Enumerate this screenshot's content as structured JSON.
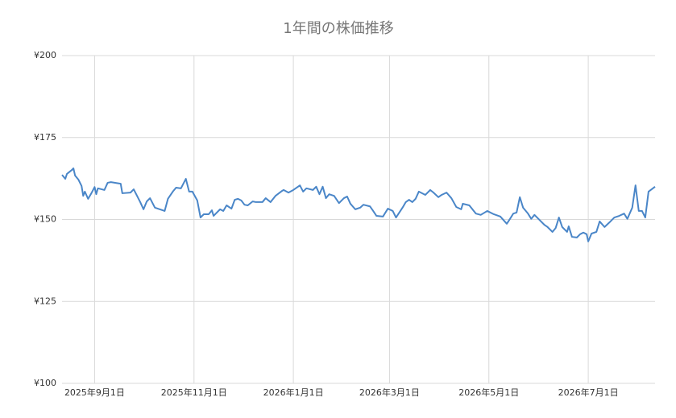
{
  "chart_data": {
    "type": "line",
    "title": "1年間の株価推移",
    "x": [
      "2025-08-12",
      "2025-08-14",
      "2025-08-15",
      "2025-08-18",
      "2025-08-19",
      "2025-08-20",
      "2025-08-22",
      "2025-08-24",
      "2025-08-25",
      "2025-08-26",
      "2025-08-28",
      "2025-08-30",
      "2025-09-01",
      "2025-09-02",
      "2025-09-03",
      "2025-09-07",
      "2025-09-09",
      "2025-09-11",
      "2025-09-17",
      "2025-09-18",
      "2025-09-23",
      "2025-09-25",
      "2025-09-29",
      "2025-10-01",
      "2025-10-03",
      "2025-10-05",
      "2025-10-08",
      "2025-10-14",
      "2025-10-16",
      "2025-10-19",
      "2025-10-21",
      "2025-10-24",
      "2025-10-27",
      "2025-10-29",
      "2025-10-31",
      "2025-11-03",
      "2025-11-05",
      "2025-11-07",
      "2025-11-10",
      "2025-11-12",
      "2025-11-13",
      "2025-11-17",
      "2025-11-19",
      "2025-11-21",
      "2025-11-24",
      "2025-11-26",
      "2025-11-28",
      "2025-11-30",
      "2025-12-02",
      "2025-12-04",
      "2025-12-07",
      "2025-12-09",
      "2025-12-13",
      "2025-12-15",
      "2025-12-18",
      "2025-12-21",
      "2025-12-25",
      "2025-12-26",
      "2025-12-29",
      "2026-01-01",
      "2026-01-05",
      "2026-01-07",
      "2026-01-09",
      "2026-01-13",
      "2026-01-15",
      "2026-01-17",
      "2026-01-19",
      "2026-01-21",
      "2026-01-23",
      "2026-01-26",
      "2026-01-29",
      "2026-02-01",
      "2026-02-03",
      "2026-02-05",
      "2026-02-08",
      "2026-02-11",
      "2026-02-13",
      "2026-02-17",
      "2026-02-19",
      "2026-02-21",
      "2026-02-25",
      "2026-02-28",
      "2026-03-03",
      "2026-03-05",
      "2026-03-09",
      "2026-03-11",
      "2026-03-13",
      "2026-03-15",
      "2026-03-17",
      "2026-03-19",
      "2026-03-23",
      "2026-03-26",
      "2026-03-28",
      "2026-03-31",
      "2026-04-02",
      "2026-04-05",
      "2026-04-08",
      "2026-04-11",
      "2026-04-14",
      "2026-04-15",
      "2026-04-19",
      "2026-04-23",
      "2026-04-26",
      "2026-04-30",
      "2026-05-04",
      "2026-05-08",
      "2026-05-12",
      "2026-05-14",
      "2026-05-16",
      "2026-05-18",
      "2026-05-20",
      "2026-05-22",
      "2026-05-25",
      "2026-05-27",
      "2026-05-29",
      "2026-06-01",
      "2026-06-04",
      "2026-06-06",
      "2026-06-09",
      "2026-06-11",
      "2026-06-13",
      "2026-06-15",
      "2026-06-18",
      "2026-06-19",
      "2026-06-21",
      "2026-06-24",
      "2026-06-26",
      "2026-06-28",
      "2026-06-30",
      "2026-07-01",
      "2026-07-03",
      "2026-07-06",
      "2026-07-08",
      "2026-07-11",
      "2026-07-14",
      "2026-07-17",
      "2026-07-20",
      "2026-07-23",
      "2026-07-25",
      "2026-07-28",
      "2026-07-30",
      "2026-08-01",
      "2026-08-03",
      "2026-08-05",
      "2026-08-07",
      "2026-08-11"
    ],
    "series": [
      {
        "color": "#4a86c8",
        "values": [
          163.6,
          162.4,
          163.9,
          165.1,
          165.6,
          163.4,
          162.2,
          160.2,
          157.2,
          158.5,
          156.3,
          158.0,
          159.9,
          157.7,
          159.5,
          159.0,
          161.2,
          161.4,
          160.9,
          158.0,
          158.2,
          159.2,
          155.3,
          153.1,
          155.5,
          156.5,
          153.6,
          152.6,
          156.3,
          158.5,
          159.7,
          159.5,
          162.4,
          158.5,
          158.5,
          155.8,
          150.6,
          151.6,
          151.6,
          152.8,
          151.1,
          153.1,
          152.6,
          154.3,
          153.3,
          156.0,
          156.3,
          155.8,
          154.5,
          154.3,
          155.5,
          155.3,
          155.3,
          156.5,
          155.3,
          157.2,
          158.7,
          159.0,
          158.2,
          159.0,
          160.4,
          158.5,
          159.5,
          159.0,
          160.0,
          157.7,
          160.0,
          156.5,
          157.7,
          157.2,
          155.0,
          156.5,
          157.0,
          154.8,
          153.1,
          153.6,
          154.5,
          154.0,
          152.6,
          151.1,
          150.9,
          153.3,
          152.6,
          150.6,
          153.6,
          155.3,
          156.0,
          155.3,
          156.3,
          158.5,
          157.5,
          159.0,
          158.2,
          156.8,
          157.5,
          158.2,
          156.5,
          153.8,
          153.1,
          154.8,
          154.3,
          151.8,
          151.4,
          152.6,
          151.6,
          150.9,
          148.7,
          150.2,
          151.8,
          152.1,
          156.8,
          153.6,
          151.8,
          150.2,
          151.4,
          149.9,
          148.4,
          147.7,
          146.2,
          147.4,
          150.6,
          147.7,
          146.2,
          147.9,
          144.7,
          144.5,
          145.5,
          146.0,
          145.5,
          143.3,
          145.7,
          146.2,
          149.4,
          147.7,
          149.1,
          150.6,
          151.1,
          151.8,
          150.2,
          153.6,
          160.4,
          152.6,
          152.6,
          150.6,
          158.5,
          160.0
        ]
      }
    ],
    "xlim": [
      "2025-08-12",
      "2026-08-11"
    ],
    "xticks": [
      {
        "value": "2025-09-01",
        "label": "2025年9月1日"
      },
      {
        "value": "2025-11-01",
        "label": "2025年11月1日"
      },
      {
        "value": "2026-01-01",
        "label": "2026年1月1日"
      },
      {
        "value": "2026-03-01",
        "label": "2026年3月1日"
      },
      {
        "value": "2026-05-01",
        "label": "2026年5月1日"
      },
      {
        "value": "2026-07-01",
        "label": "2026年7月1日"
      }
    ],
    "ylim": [
      100,
      200
    ],
    "yticks": [
      {
        "value": 100,
        "label": "¥100"
      },
      {
        "value": 125,
        "label": "¥125"
      },
      {
        "value": 150,
        "label": "¥150"
      },
      {
        "value": 175,
        "label": "¥175"
      },
      {
        "value": 200,
        "label": "¥200"
      }
    ],
    "grid": true
  }
}
